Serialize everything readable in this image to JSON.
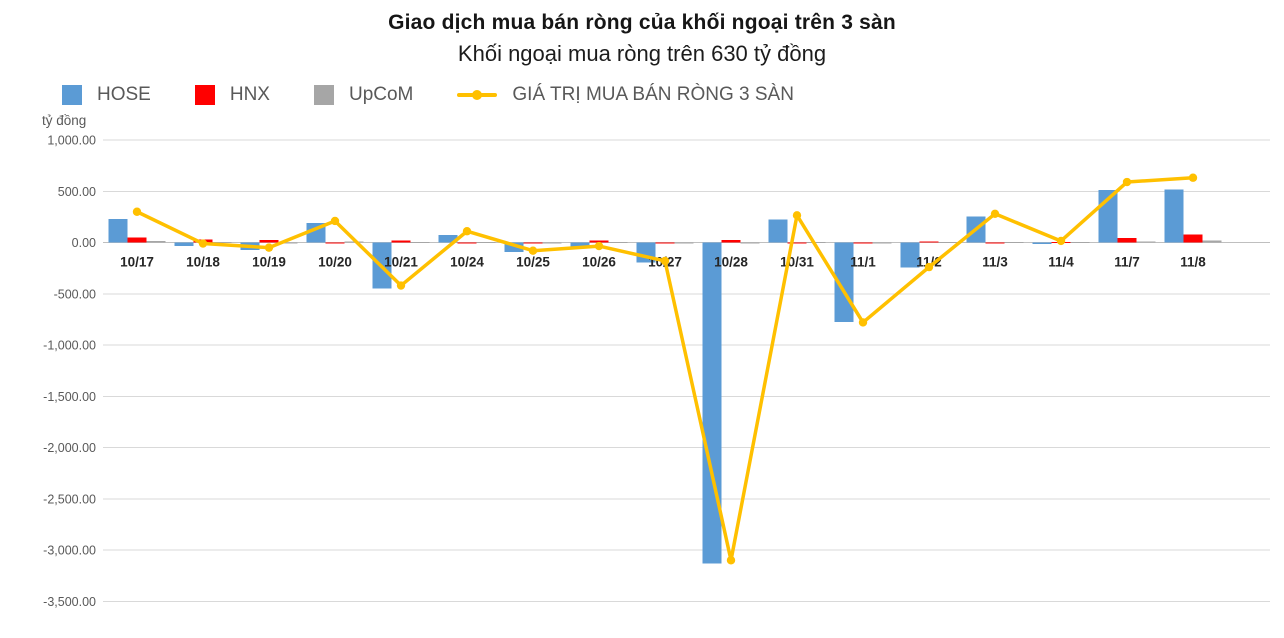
{
  "chart_data": {
    "type": "bar+line",
    "title": "Giao dịch mua bán ròng của khối ngoại trên 3 sàn",
    "subtitle": "Khối ngoại mua ròng trên 630 tỷ đồng",
    "ylabel": "tỷ đồng",
    "ylim": [
      -3500,
      1000
    ],
    "ytick_step": 500,
    "ytick_labels": [
      "1,000.00",
      "500.00",
      "0.00",
      "-500.00",
      "-1,000.00",
      "-1,500.00",
      "-2,000.00",
      "-2,500.00",
      "-3,000.00",
      "-3,500.00"
    ],
    "grid": true,
    "legend_position": "top-left",
    "categories": [
      "10/17",
      "10/18",
      "10/19",
      "10/20",
      "10/21",
      "10/24",
      "10/25",
      "10/26",
      "10/27",
      "10/28",
      "10/31",
      "11/1",
      "11/2",
      "11/3",
      "11/4",
      "11/7",
      "11/8"
    ],
    "series": [
      {
        "id": "hose",
        "name": "HOSE",
        "type": "bar",
        "color": "#5B9BD5",
        "values": [
          230,
          -35,
          -75,
          190,
          -450,
          75,
          -95,
          -55,
          -195,
          -3130,
          225,
          -775,
          -245,
          255,
          -15,
          510,
          515
        ]
      },
      {
        "id": "hnx",
        "name": "HNX",
        "type": "bar",
        "color": "#FF0000",
        "values": [
          50,
          30,
          25,
          -10,
          20,
          -5,
          -10,
          20,
          -10,
          25,
          -10,
          -10,
          10,
          -5,
          5,
          45,
          80
        ]
      },
      {
        "id": "upcom",
        "name": "UpCoM",
        "type": "bar",
        "color": "#A6A6A6",
        "values": [
          15,
          5,
          -5,
          10,
          5,
          5,
          -5,
          5,
          -5,
          -5,
          5,
          -5,
          5,
          5,
          5,
          10,
          20
        ]
      },
      {
        "id": "total",
        "name": "GIÁ TRỊ MUA BÁN RÒNG 3 SÀN",
        "type": "line",
        "color": "#FFC000",
        "values": [
          300,
          -10,
          -50,
          210,
          -420,
          110,
          -80,
          -35,
          -180,
          -3100,
          265,
          -780,
          -240,
          280,
          15,
          590,
          632
        ]
      }
    ],
    "axis_colors": {
      "gridline": "#D9D9D9",
      "zero_line": "#BFBFBF",
      "tick_label": "#595959",
      "category_label": "#262626"
    }
  }
}
